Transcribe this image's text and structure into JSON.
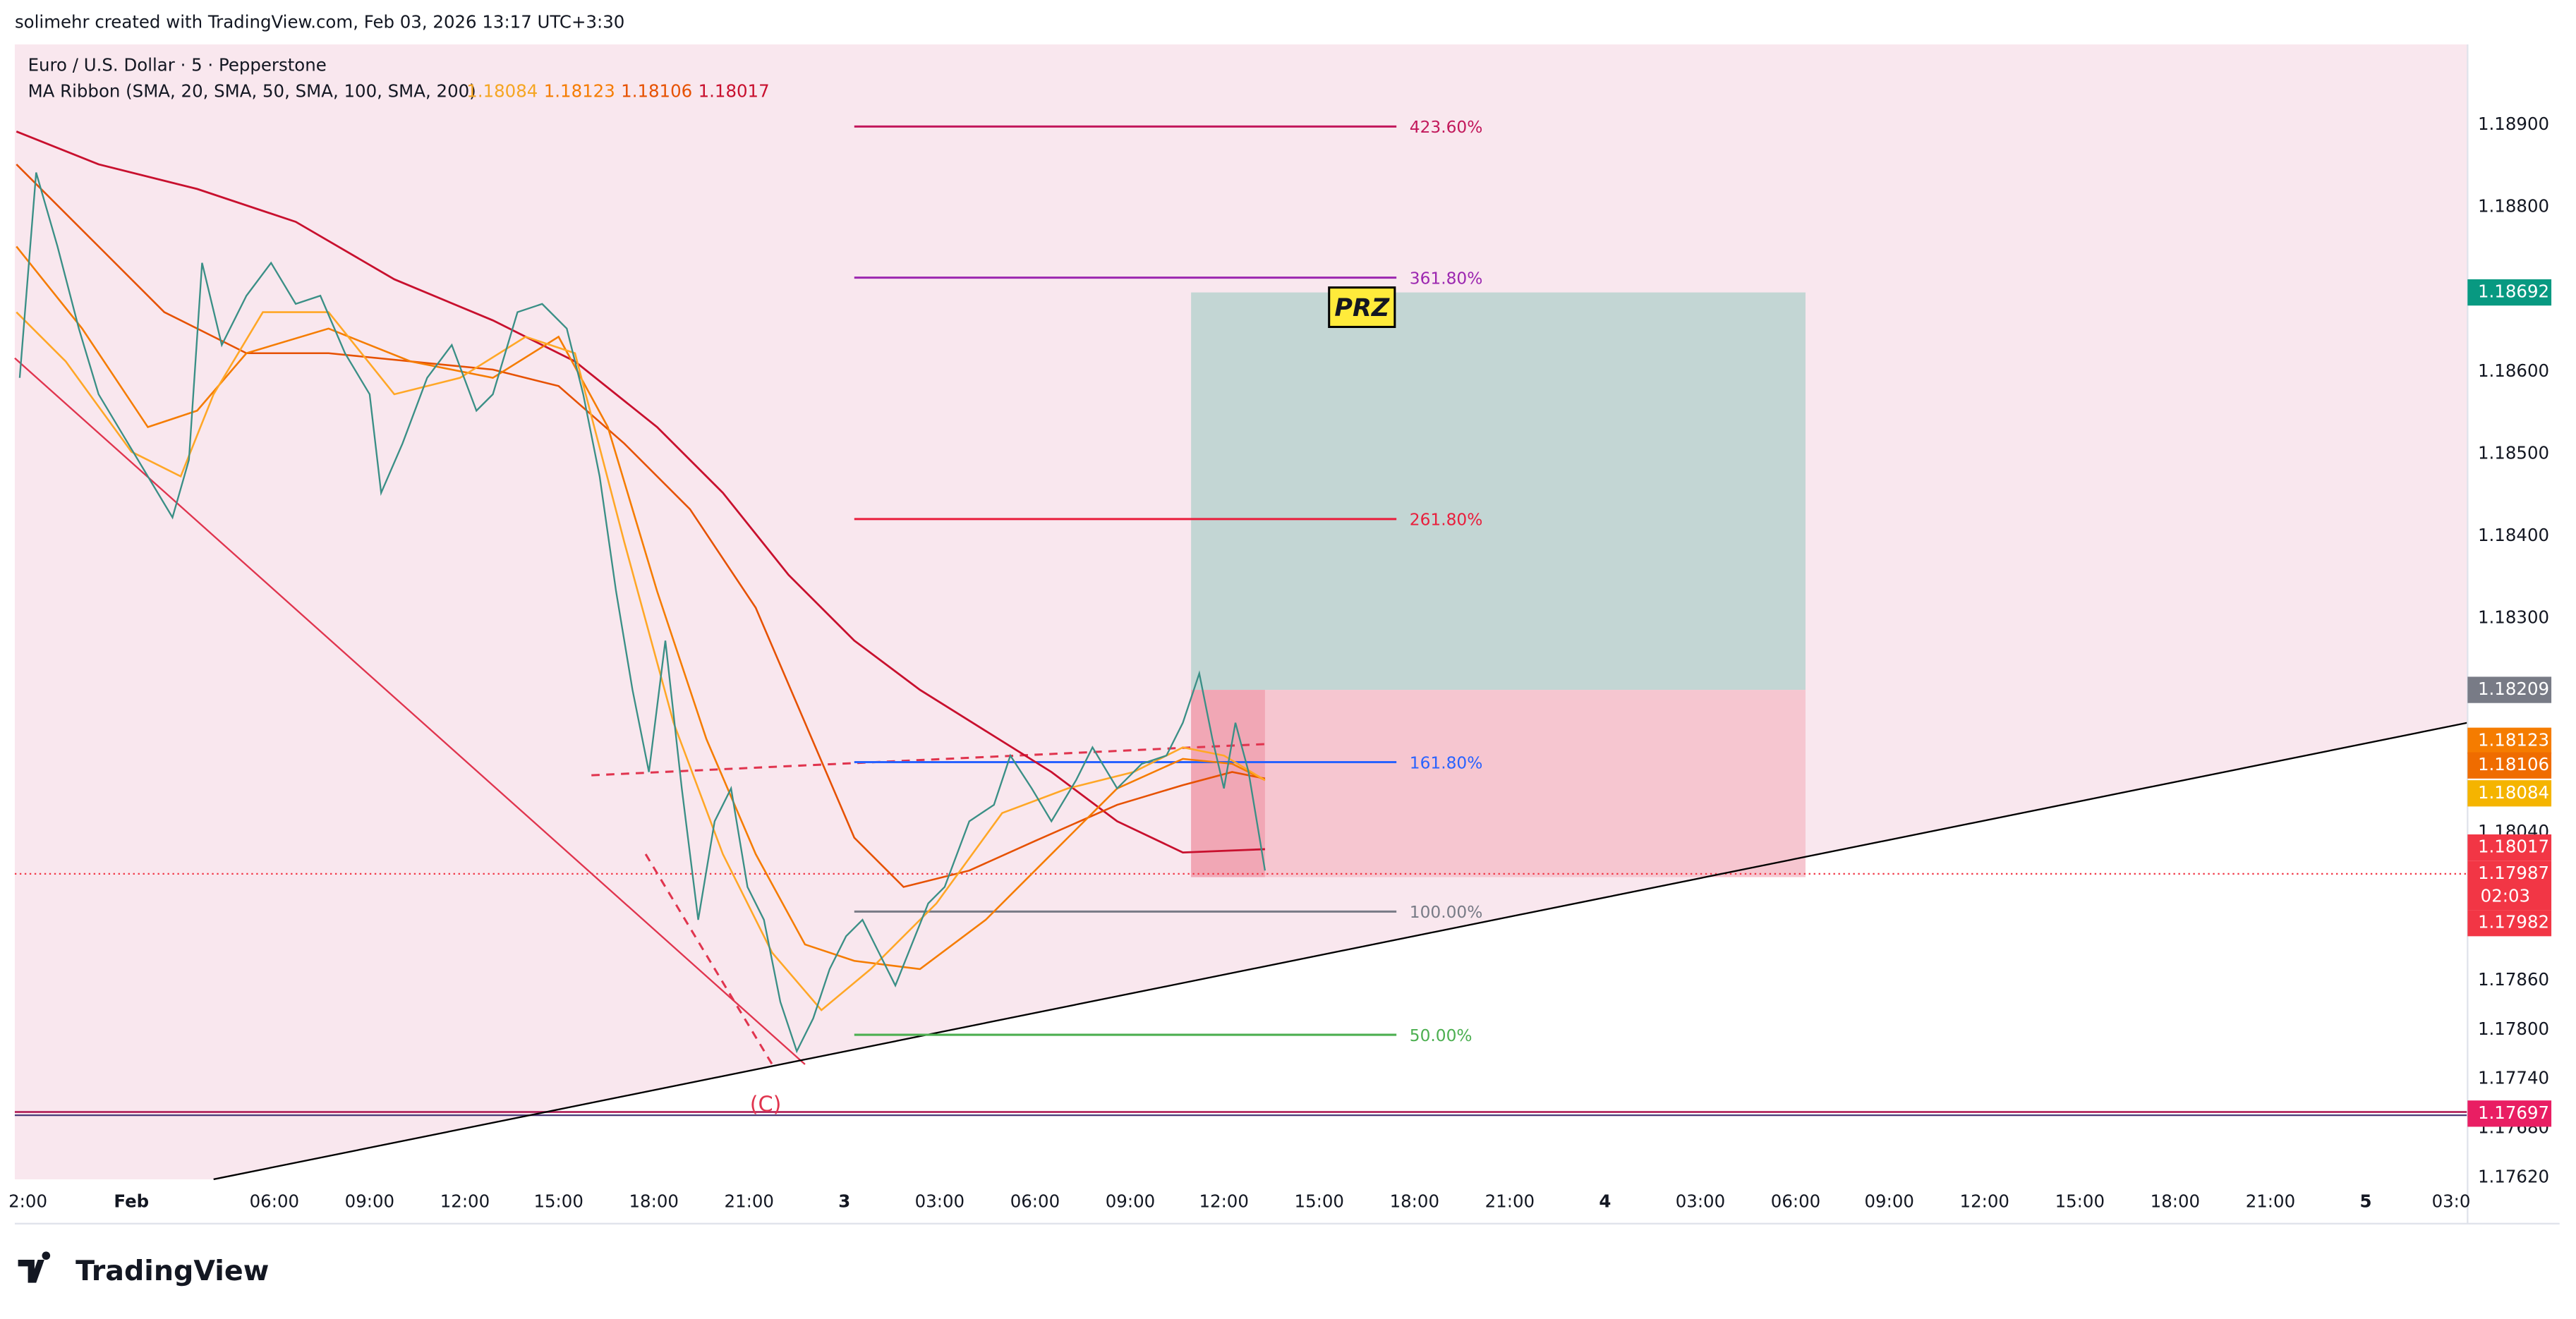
{
  "header": {
    "attribution": "solimehr created with TradingView.com, Feb 03, 2026 13:17 UTC+3:30"
  },
  "legend": {
    "symbol": "Euro / U.S. Dollar · 5 · Pepperstone",
    "indicator": "MA Ribbon (SMA, 20, SMA, 50, SMA, 100, SMA, 200)",
    "values": [
      "1.18084",
      "1.18123",
      "1.18106",
      "1.18017"
    ]
  },
  "fib_levels": [
    "423.60%",
    "361.80%",
    "261.80%",
    "161.80%",
    "100.00%",
    "50.00%"
  ],
  "annotations": {
    "prz": "PRZ",
    "wave": "(C)"
  },
  "price_axis": {
    "labels": [
      "1.18900",
      "1.18800",
      "1.18600",
      "1.18500",
      "1.18400",
      "1.18300",
      "1.18040",
      "1.17860",
      "1.17800",
      "1.17740",
      "1.17680",
      "1.17620"
    ]
  },
  "price_badges": [
    {
      "label": "1.18692"
    },
    {
      "label": "1.18209"
    },
    {
      "label": "1.18123"
    },
    {
      "label": "1.18106"
    },
    {
      "label": "1.18084"
    },
    {
      "label": "1.18017"
    },
    {
      "label": "1.17987",
      "countdown": "02:03"
    },
    {
      "label": "1.17982"
    },
    {
      "label": "1.17697"
    }
  ],
  "time_axis": {
    "labels": [
      "2:00",
      "Feb",
      "06:00",
      "09:00",
      "12:00",
      "15:00",
      "18:00",
      "21:00",
      "3",
      "03:00",
      "06:00",
      "09:00",
      "12:00",
      "15:00",
      "18:00",
      "21:00",
      "4",
      "03:00",
      "06:00",
      "09:00",
      "12:00",
      "15:00",
      "18:00",
      "21:00",
      "5",
      "03:0"
    ]
  },
  "footer": {
    "brand": "TradingView"
  }
}
